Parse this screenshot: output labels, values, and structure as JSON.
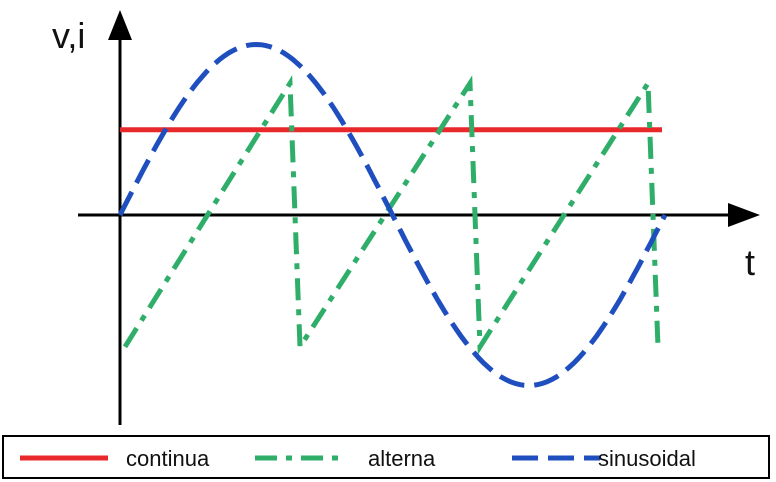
{
  "chart_data": {
    "type": "line",
    "ylabel": "v,i",
    "xlabel": "t",
    "series": [
      {
        "name": "continua",
        "style": "solid",
        "color": "#e8282b",
        "kind": "dc",
        "level": 0.55
      },
      {
        "name": "alterna",
        "style": "dash-dot",
        "color": "#2fae6a",
        "kind": "sawtooth",
        "period_fraction": 0.33,
        "min": -0.85,
        "max": 0.85
      },
      {
        "name": "sinusoidal",
        "style": "dashed",
        "color": "#1f4fbf",
        "kind": "sine",
        "amplitude": 1.1,
        "cycles": 1.0
      }
    ]
  },
  "legend": {
    "items": [
      {
        "label": "continua"
      },
      {
        "label": "alterna"
      },
      {
        "label": "sinusoidal"
      }
    ]
  }
}
